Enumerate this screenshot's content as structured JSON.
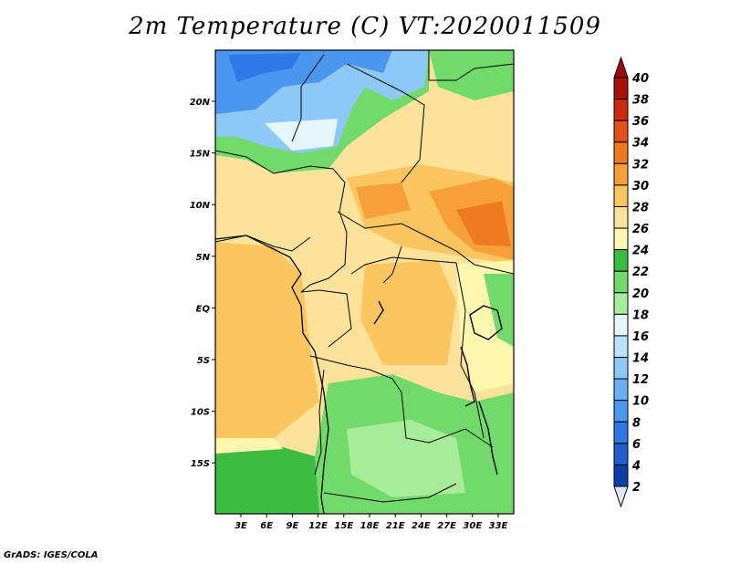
{
  "title": "2m Temperature (C) VT:2020011509",
  "footer": "GrADS: IGES/COLA",
  "map": {
    "lon_ticks": [
      "3E",
      "6E",
      "9E",
      "12E",
      "15E",
      "18E",
      "21E",
      "24E",
      "27E",
      "30E",
      "33E"
    ],
    "lat_ticks": [
      "20N",
      "15N",
      "10N",
      "5N",
      "EQ",
      "5S",
      "10S",
      "15S"
    ]
  },
  "colorbar": {
    "levels": [
      "2",
      "4",
      "6",
      "8",
      "10",
      "12",
      "14",
      "16",
      "18",
      "20",
      "22",
      "24",
      "26",
      "28",
      "30",
      "32",
      "34",
      "36",
      "38",
      "40"
    ],
    "colors": [
      "#1a1a80",
      "#0a3fa8",
      "#1f5fd0",
      "#2f79e6",
      "#4b97f0",
      "#6ab0f4",
      "#8ec8f6",
      "#b9e2fa",
      "#e6f6fb",
      "#a6ec9a",
      "#72da6a",
      "#3cbc40",
      "#fff7b0",
      "#fde39a",
      "#fbc55f",
      "#f7a03a",
      "#f07a22",
      "#e4501a",
      "#cc2a12",
      "#a8100a"
    ],
    "under_color": "#e6e6fa",
    "over_color": "#9a0a0a"
  }
}
